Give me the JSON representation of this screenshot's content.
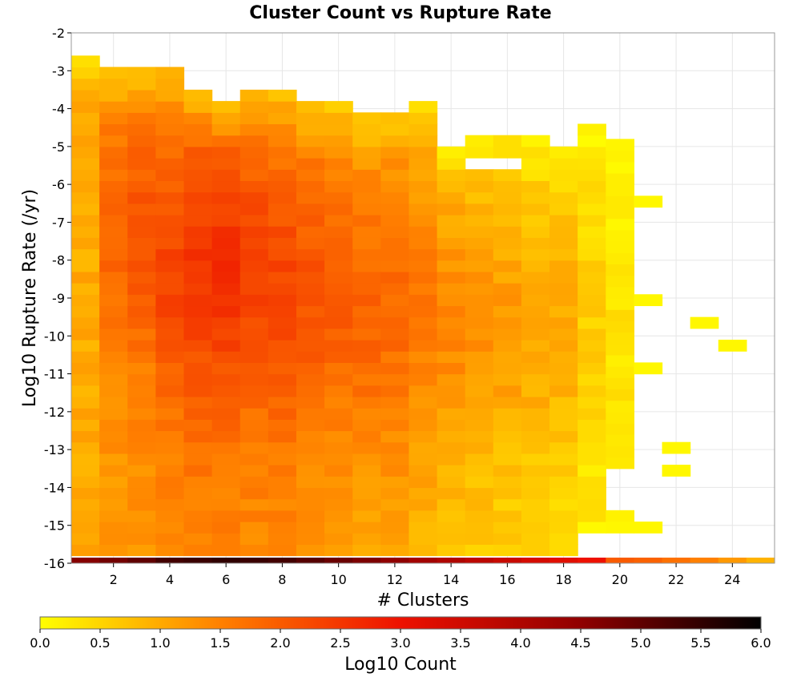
{
  "chart_data": {
    "type": "heatmap",
    "title": "Cluster Count vs Rupture Rate",
    "xlabel": "# Clusters",
    "ylabel": "Log10 Rupture Rate (/yr)",
    "colorbar_label": "Log10 Count",
    "x_range": [
      0.5,
      25.5
    ],
    "y_range": [
      -16,
      -2
    ],
    "x_ticks": [
      "2",
      "4",
      "6",
      "8",
      "10",
      "12",
      "14",
      "16",
      "18",
      "20",
      "22",
      "24"
    ],
    "y_ticks": [
      "-2",
      "-3",
      "-4",
      "-5",
      "-6",
      "-7",
      "-8",
      "-9",
      "-10",
      "-11",
      "-12",
      "-13",
      "-14",
      "-15",
      "-16"
    ],
    "colorbar_ticks": [
      "0.0",
      "0.5",
      "1.0",
      "1.5",
      "2.0",
      "2.5",
      "3.0",
      "3.5",
      "4.0",
      "4.5",
      "5.0",
      "5.5",
      "6.0"
    ],
    "color_range": [
      0,
      6
    ],
    "colormap": [
      "#ffff00",
      "#ff8000",
      "#ee1100",
      "#900000",
      "#000000"
    ],
    "y_bin_width": 0.3,
    "grid": true,
    "columns": [
      {
        "x": 1,
        "y_top": -2.7,
        "y_bottom": -15.8,
        "base": 1.0,
        "peak": 1.0,
        "peak_y": -8.0,
        "spread": 6.0
      },
      {
        "x": 2,
        "y_top": -3.0,
        "y_bottom": -15.8,
        "base": 1.2,
        "peak": 1.9,
        "peak_y": -7.5,
        "spread": 3.5
      },
      {
        "x": 3,
        "y_top": -3.0,
        "y_bottom": -15.8,
        "base": 1.3,
        "peak": 2.1,
        "peak_y": -7.5,
        "spread": 3.5
      },
      {
        "x": 4,
        "y_top": -3.0,
        "y_bottom": -15.8,
        "base": 1.4,
        "peak": 2.3,
        "peak_y": -8.5,
        "spread": 3.5
      },
      {
        "x": 5,
        "y_top": -3.6,
        "y_bottom": -15.8,
        "base": 1.5,
        "peak": 2.5,
        "peak_y": -8.5,
        "spread": 3.5
      },
      {
        "x": 6,
        "y_top": -3.9,
        "y_bottom": -15.8,
        "base": 1.5,
        "peak": 2.6,
        "peak_y": -8.5,
        "spread": 3.5
      },
      {
        "x": 7,
        "y_top": -3.6,
        "y_bottom": -15.8,
        "base": 1.4,
        "peak": 2.4,
        "peak_y": -8.5,
        "spread": 3.5
      },
      {
        "x": 8,
        "y_top": -3.6,
        "y_bottom": -15.8,
        "base": 1.4,
        "peak": 2.3,
        "peak_y": -9.0,
        "spread": 3.5
      },
      {
        "x": 9,
        "y_top": -3.9,
        "y_bottom": -15.8,
        "base": 1.3,
        "peak": 2.1,
        "peak_y": -9.0,
        "spread": 3.5
      },
      {
        "x": 10,
        "y_top": -3.9,
        "y_bottom": -15.8,
        "base": 1.2,
        "peak": 2.0,
        "peak_y": -9.0,
        "spread": 3.5
      },
      {
        "x": 11,
        "y_top": -4.2,
        "y_bottom": -15.8,
        "base": 1.1,
        "peak": 1.9,
        "peak_y": -9.5,
        "spread": 3.5
      },
      {
        "x": 12,
        "y_top": -4.2,
        "y_bottom": -15.8,
        "base": 1.1,
        "peak": 1.8,
        "peak_y": -9.5,
        "spread": 3.5
      },
      {
        "x": 13,
        "y_top": -3.9,
        "y_bottom": -15.8,
        "base": 0.9,
        "peak": 1.6,
        "peak_y": -9.5,
        "spread": 3.5
      },
      {
        "x": 14,
        "y_top": -5.3,
        "y_bottom": -15.8,
        "base": 0.7,
        "peak": 1.4,
        "peak_y": -10.0,
        "spread": 3.5
      },
      {
        "x": 15,
        "y_top": -5.0,
        "y_bottom": -15.8,
        "base": 0.6,
        "peak": 1.3,
        "peak_y": -10.0,
        "spread": 3.5
      },
      {
        "x": 16,
        "y_top": -5.0,
        "y_bottom": -15.8,
        "base": 0.5,
        "peak": 1.2,
        "peak_y": -10.0,
        "spread": 3.5
      },
      {
        "x": 17,
        "y_top": -5.0,
        "y_bottom": -15.8,
        "base": 0.4,
        "peak": 1.1,
        "peak_y": -10.0,
        "spread": 3.5
      },
      {
        "x": 18,
        "y_top": -5.3,
        "y_bottom": -15.8,
        "base": 0.4,
        "peak": 1.0,
        "peak_y": -10.0,
        "spread": 3.5
      },
      {
        "x": 19,
        "y_top": -4.7,
        "y_bottom": -15.2,
        "base": 0.2,
        "peak": 0.6,
        "peak_y": -10.0,
        "spread": 3.5
      },
      {
        "x": 20,
        "y_top": -5.0,
        "y_bottom": -13.5,
        "base": 0.1,
        "peak": 0.3,
        "peak_y": -10.0,
        "spread": 3.5
      }
    ],
    "missing_cells": [
      {
        "x": 15,
        "y": -5.6
      },
      {
        "x": 16,
        "y": -5.6
      },
      {
        "x": 20,
        "y": -5.3
      },
      {
        "x": 20,
        "y": -5.6
      },
      {
        "x": 20,
        "y": -5.9
      },
      {
        "x": 20,
        "y": -8.6
      },
      {
        "x": 20,
        "y": -8.9
      },
      {
        "x": 20,
        "y": -12.2
      },
      {
        "x": 20,
        "y": -12.5
      },
      {
        "x": 20,
        "y": -14.3
      }
    ],
    "extra_cells": [
      {
        "x": 20,
        "y": -14.9,
        "v": 0.15
      },
      {
        "x": 20,
        "y": -15.2,
        "v": 0.1
      },
      {
        "x": 21,
        "y": -6.6,
        "v": 0.1
      },
      {
        "x": 21,
        "y": -9.2,
        "v": 0.1
      },
      {
        "x": 21,
        "y": -11.0,
        "v": 0.1
      },
      {
        "x": 21,
        "y": -15.2,
        "v": 0.1
      },
      {
        "x": 22,
        "y": -13.1,
        "v": 0.1
      },
      {
        "x": 22,
        "y": -13.7,
        "v": 0.1
      },
      {
        "x": 23,
        "y": -9.8,
        "v": 0.1
      },
      {
        "x": 24,
        "y": -10.4,
        "v": 0.1
      }
    ],
    "bottom_row": {
      "y": -16.0,
      "values": [
        4.6,
        4.8,
        5.0,
        5.3,
        5.4,
        5.5,
        5.4,
        5.3,
        5.1,
        4.9,
        4.7,
        4.5,
        4.2,
        4.0,
        3.8,
        3.6,
        3.4,
        3.2,
        3.0,
        2.0,
        1.9,
        1.7,
        1.5,
        1.2,
        0.9
      ]
    }
  }
}
